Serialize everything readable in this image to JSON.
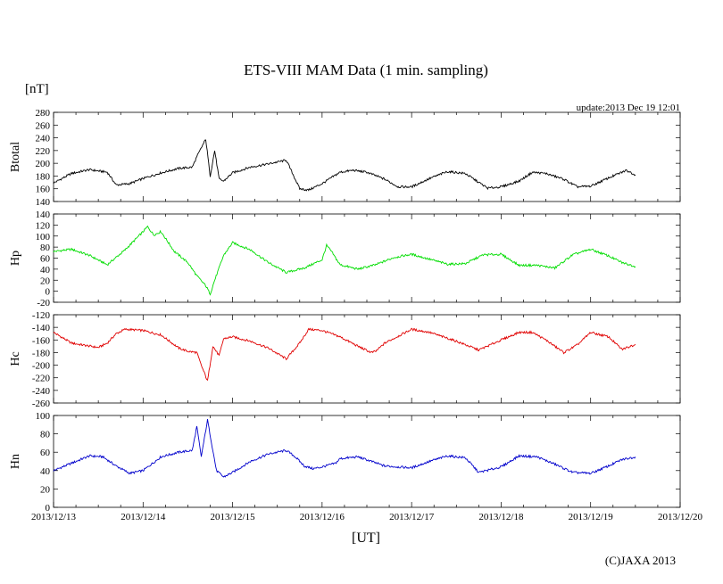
{
  "title": "ETS-VIII MAM Data (1 min. sampling)",
  "unit_label": "[nT]",
  "update_text": "update:2013 Dec 19 12:01",
  "x_axis_label": "[UT]",
  "copyright": "(C)JAXA 2013",
  "colors": {
    "btotal": "#000000",
    "hp": "#00dd00",
    "hc": "#e00000",
    "hn": "#0000cc"
  },
  "chart_data": {
    "type": "line",
    "title": "ETS-VIII MAM Data (1 min. sampling)",
    "xlabel": "[UT]",
    "x_ticks": [
      "2013/12/13",
      "2013/12/14",
      "2013/12/15",
      "2013/12/16",
      "2013/12/17",
      "2013/12/18",
      "2013/12/19",
      "2013/12/20"
    ],
    "x_range_days": [
      0,
      7
    ],
    "panels": [
      {
        "name": "Btotal",
        "ylabel": "Btotal",
        "ylim": [
          140,
          280
        ],
        "yticks": [
          140,
          160,
          180,
          200,
          220,
          240,
          260,
          280
        ],
        "color": "#000000",
        "x": [
          0,
          0.2,
          0.4,
          0.6,
          0.7,
          0.85,
          1.0,
          1.2,
          1.4,
          1.55,
          1.6,
          1.7,
          1.75,
          1.8,
          1.85,
          1.9,
          2.0,
          2.2,
          2.4,
          2.6,
          2.75,
          2.85,
          3.0,
          3.2,
          3.35,
          3.5,
          3.7,
          3.85,
          4.0,
          4.2,
          4.4,
          4.6,
          4.75,
          4.85,
          5.0,
          5.2,
          5.35,
          5.5,
          5.7,
          5.85,
          6.0,
          6.2,
          6.4,
          6.5
        ],
        "values": [
          169,
          184,
          190,
          186,
          166,
          168,
          176,
          185,
          192,
          194,
          210,
          238,
          180,
          220,
          175,
          172,
          185,
          194,
          199,
          205,
          160,
          158,
          168,
          186,
          189,
          186,
          175,
          163,
          163,
          176,
          187,
          184,
          170,
          161,
          163,
          172,
          186,
          184,
          175,
          163,
          164,
          177,
          189,
          182
        ]
      },
      {
        "name": "Hp",
        "ylabel": "Hp",
        "ylim": [
          -20,
          140
        ],
        "yticks": [
          -20,
          0,
          20,
          40,
          60,
          80,
          100,
          120,
          140
        ],
        "color": "#00dd00",
        "x": [
          0,
          0.2,
          0.4,
          0.6,
          0.8,
          1.0,
          1.05,
          1.12,
          1.2,
          1.35,
          1.5,
          1.6,
          1.7,
          1.75,
          1.8,
          1.9,
          2.0,
          2.2,
          2.4,
          2.6,
          2.8,
          3.0,
          3.05,
          3.1,
          3.2,
          3.4,
          3.6,
          3.8,
          4.0,
          4.2,
          4.4,
          4.6,
          4.8,
          5.0,
          5.2,
          5.4,
          5.6,
          5.8,
          6.0,
          6.2,
          6.35,
          6.5
        ],
        "values": [
          72,
          76,
          65,
          48,
          75,
          108,
          117,
          102,
          108,
          72,
          52,
          28,
          10,
          -5,
          20,
          65,
          88,
          75,
          52,
          34,
          42,
          57,
          83,
          73,
          48,
          40,
          48,
          61,
          67,
          58,
          49,
          50,
          66,
          67,
          47,
          47,
          42,
          66,
          76,
          64,
          52,
          45
        ]
      },
      {
        "name": "Hc",
        "ylabel": "Hc",
        "ylim": [
          -260,
          -120
        ],
        "yticks": [
          -120,
          -140,
          -160,
          -180,
          -200,
          -220,
          -240,
          -260
        ],
        "color": "#e00000",
        "x": [
          0,
          0.2,
          0.5,
          0.6,
          0.7,
          0.8,
          1.0,
          1.2,
          1.4,
          1.5,
          1.6,
          1.65,
          1.72,
          1.78,
          1.85,
          1.9,
          2.0,
          2.2,
          2.4,
          2.6,
          2.75,
          2.85,
          3.0,
          3.2,
          3.4,
          3.55,
          3.6,
          3.7,
          4.0,
          4.2,
          4.5,
          4.75,
          5.0,
          5.2,
          5.35,
          5.5,
          5.7,
          5.85,
          6.0,
          6.2,
          6.35,
          6.5
        ],
        "values": [
          -148,
          -165,
          -172,
          -165,
          -150,
          -143,
          -145,
          -152,
          -173,
          -178,
          -180,
          -200,
          -225,
          -170,
          -185,
          -158,
          -155,
          -162,
          -173,
          -190,
          -165,
          -143,
          -145,
          -155,
          -170,
          -180,
          -178,
          -165,
          -143,
          -148,
          -162,
          -176,
          -160,
          -148,
          -148,
          -160,
          -180,
          -168,
          -148,
          -155,
          -175,
          -167
        ]
      },
      {
        "name": "Hn",
        "ylabel": "Hn",
        "ylim": [
          0,
          100
        ],
        "yticks": [
          0,
          20,
          40,
          60,
          80,
          100
        ],
        "color": "#0000cc",
        "x": [
          0,
          0.2,
          0.4,
          0.55,
          0.7,
          0.85,
          1.0,
          1.2,
          1.4,
          1.55,
          1.6,
          1.65,
          1.72,
          1.78,
          1.82,
          1.9,
          2.0,
          2.2,
          2.4,
          2.6,
          2.7,
          2.8,
          2.9,
          3.0,
          3.15,
          3.2,
          3.4,
          3.7,
          4.0,
          4.2,
          4.4,
          4.6,
          4.75,
          5.0,
          5.2,
          5.4,
          5.6,
          5.8,
          6.0,
          6.2,
          6.35,
          6.5
        ],
        "values": [
          40,
          48,
          56,
          55,
          45,
          37,
          40,
          55,
          60,
          62,
          88,
          55,
          95,
          62,
          40,
          33,
          38,
          50,
          58,
          62,
          55,
          45,
          42,
          44,
          48,
          53,
          55,
          45,
          43,
          50,
          56,
          54,
          38,
          44,
          56,
          55,
          47,
          38,
          37,
          45,
          52,
          55
        ]
      }
    ]
  }
}
